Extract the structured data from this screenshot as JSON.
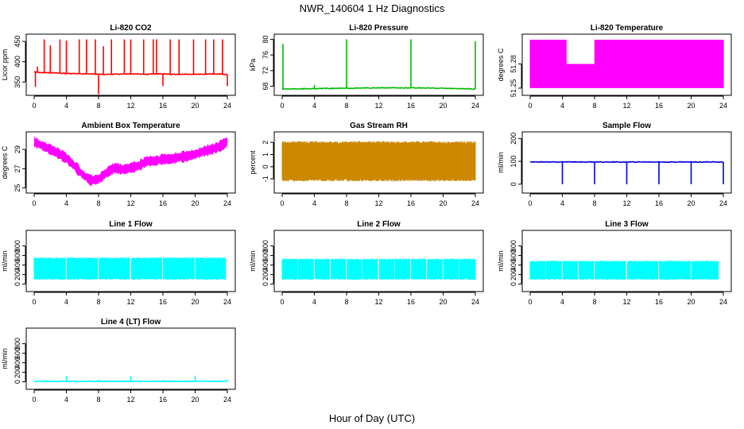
{
  "figure": {
    "title": "NWR_140604  1 Hz Diagnostics",
    "xlabel": "Hour of Day (UTC)"
  },
  "chart_data": [
    {
      "id": "p1",
      "type": "line",
      "title": "Li-820 CO2",
      "ylabel": "Licor ppm",
      "color": "#ff0000",
      "xlim": [
        0,
        24
      ],
      "xticks": [
        0,
        4,
        8,
        12,
        16,
        20,
        24
      ],
      "ylim": [
        325,
        460
      ],
      "yticks": [
        350,
        400,
        450
      ],
      "x": [
        0,
        1,
        2,
        3,
        4,
        5,
        6,
        7,
        8,
        9,
        10,
        11,
        12,
        13,
        14,
        15,
        16,
        17,
        18,
        19,
        20,
        21,
        22,
        23,
        24
      ],
      "values": [
        375,
        373,
        373,
        372,
        371,
        371,
        370,
        370,
        369,
        369,
        369,
        370,
        370,
        370,
        369,
        370,
        370,
        369,
        369,
        369,
        369,
        369,
        370,
        370,
        368
      ],
      "spikes": [
        [
          0.15,
          338
        ],
        [
          0.4,
          388
        ],
        [
          1.25,
          455
        ],
        [
          2.0,
          440
        ],
        [
          3.2,
          455
        ],
        [
          4.0,
          452
        ],
        [
          5.6,
          455
        ],
        [
          6.5,
          455
        ],
        [
          7.6,
          455
        ],
        [
          8.0,
          320
        ],
        [
          8.6,
          438
        ],
        [
          9.6,
          455
        ],
        [
          11.2,
          455
        ],
        [
          12.0,
          455
        ],
        [
          13.6,
          455
        ],
        [
          14.8,
          455
        ],
        [
          15.2,
          455
        ],
        [
          16.0,
          340
        ],
        [
          16.9,
          455
        ],
        [
          18.0,
          455
        ],
        [
          19.8,
          455
        ],
        [
          21.3,
          455
        ],
        [
          22.3,
          455
        ],
        [
          23.4,
          455
        ],
        [
          24.0,
          340
        ]
      ]
    },
    {
      "id": "p2",
      "type": "line",
      "title": "Li-820 Pressure",
      "ylabel": "kPa",
      "color": "#00bb00",
      "xlim": [
        0,
        24
      ],
      "xticks": [
        0,
        4,
        8,
        12,
        16,
        20,
        24
      ],
      "ylim": [
        66.5,
        80.5
      ],
      "yticks": [
        68,
        72,
        76,
        80
      ],
      "x": [
        0,
        4,
        8,
        12,
        16,
        20,
        24
      ],
      "values": [
        67.3,
        67.4,
        67.5,
        67.6,
        67.6,
        67.5,
        67.3
      ],
      "spikes": [
        [
          0.1,
          78.8
        ],
        [
          4.0,
          68.3
        ],
        [
          8.0,
          80
        ],
        [
          16.0,
          80
        ],
        [
          24.0,
          79.5
        ]
      ]
    },
    {
      "id": "p3",
      "type": "band",
      "title": "Li-820 Temperature",
      "ylabel": "degrees C",
      "color": "#ff00ff",
      "xlim": [
        0,
        24
      ],
      "xticks": [
        0,
        4,
        8,
        12,
        16,
        20,
        24
      ],
      "ylim": [
        51.245,
        51.313
      ],
      "yticks": [
        51.25,
        51.28
      ],
      "band": [
        51.25,
        51.31
      ],
      "gap_top": 51.28,
      "gaps": [
        [
          4.5,
          8.0
        ]
      ]
    },
    {
      "id": "p4",
      "type": "band",
      "title": "Ambient Box Temperature",
      "ylabel": "degrees C",
      "color": "#ff00ff",
      "xlim": [
        0,
        24
      ],
      "xticks": [
        0,
        4,
        8,
        12,
        16,
        20,
        24
      ],
      "ylim": [
        24.8,
        30.5
      ],
      "yticks": [
        25,
        27,
        29
      ],
      "x": [
        0,
        1,
        2,
        3,
        4,
        5,
        6,
        7,
        8,
        9,
        10,
        11,
        12,
        13,
        14,
        15,
        16,
        17,
        18,
        19,
        20,
        21,
        22,
        23,
        24
      ],
      "values": [
        29.8,
        29.4,
        29.0,
        28.6,
        28.1,
        27.3,
        26.4,
        25.8,
        25.9,
        26.6,
        27.1,
        26.9,
        27.1,
        27.3,
        27.8,
        27.8,
        28.0,
        28.0,
        28.2,
        28.3,
        28.5,
        28.8,
        29.0,
        29.3,
        29.8
      ],
      "halfwidth": 0.55
    },
    {
      "id": "p5",
      "type": "band",
      "title": "Gas Stream RH",
      "ylabel": "percent",
      "color": "#cc8800",
      "xlim": [
        0,
        24
      ],
      "xticks": [
        0,
        4,
        8,
        12,
        16,
        20,
        24
      ],
      "ylim": [
        -1.9,
        2.6
      ],
      "yticks": [
        -1,
        0,
        1,
        2
      ],
      "band": [
        -1.2,
        2.1
      ]
    },
    {
      "id": "p6",
      "type": "line",
      "title": "Sample Flow",
      "ylabel": "ml/min",
      "color": "#0000dd",
      "xlim": [
        0,
        24
      ],
      "xticks": [
        0,
        4,
        8,
        12,
        16,
        20,
        24
      ],
      "ylim": [
        -25,
        215
      ],
      "yticks": [
        0,
        100,
        200
      ],
      "x": [
        0,
        24
      ],
      "values": [
        97,
        97
      ],
      "spikes": [
        [
          4,
          0
        ],
        [
          8,
          0
        ],
        [
          12,
          0
        ],
        [
          16,
          0
        ],
        [
          20,
          0
        ],
        [
          24,
          0
        ]
      ]
    },
    {
      "id": "p7",
      "type": "band",
      "title": "Line 1 Flow",
      "ylabel": "ml/min",
      "color": "#00ffff",
      "xlim": [
        0,
        24
      ],
      "xticks": [
        0,
        4,
        8,
        12,
        16,
        20,
        24
      ],
      "ylim": [
        -90,
        1060
      ],
      "yticks": [
        0,
        200,
        400,
        600,
        800
      ],
      "band": [
        90,
        560
      ],
      "gaps": [
        [
          3.9,
          4.05
        ],
        [
          7.9,
          8.05
        ],
        [
          11.9,
          12.05
        ],
        [
          15.9,
          16.05
        ],
        [
          19.9,
          20.05
        ],
        [
          23.8,
          24.0
        ]
      ]
    },
    {
      "id": "p8",
      "type": "band",
      "title": "Line 2 Flow",
      "ylabel": "ml/min",
      "color": "#00ffff",
      "xlim": [
        0,
        24
      ],
      "xticks": [
        0,
        4,
        8,
        12,
        16,
        20,
        24
      ],
      "ylim": [
        -90,
        1060
      ],
      "yticks": [
        0,
        200,
        400,
        600,
        800
      ],
      "band": [
        90,
        535
      ],
      "gaps": [
        [
          1.9,
          2.0
        ],
        [
          3.9,
          4.05
        ],
        [
          5.9,
          6.0
        ],
        [
          7.9,
          8.05
        ],
        [
          9.9,
          10.0
        ],
        [
          11.9,
          12.05
        ],
        [
          13.9,
          14.0
        ],
        [
          15.9,
          16.05
        ],
        [
          17.9,
          18.0
        ],
        [
          19.9,
          20.05
        ],
        [
          21.9,
          22.0
        ]
      ]
    },
    {
      "id": "p9",
      "type": "band",
      "title": "Line 3 Flow",
      "ylabel": "ml/min",
      "color": "#00ffff",
      "xlim": [
        0,
        24
      ],
      "xticks": [
        0,
        4,
        8,
        12,
        16,
        20,
        24
      ],
      "ylim": [
        -90,
        1060
      ],
      "yticks": [
        0,
        200,
        400,
        600,
        800
      ],
      "band": [
        90,
        490
      ],
      "gaps": [
        [
          1.9,
          2.0
        ],
        [
          3.9,
          4.05
        ],
        [
          5.9,
          6.0
        ],
        [
          7.9,
          8.05
        ],
        [
          11.9,
          12.05
        ],
        [
          15.9,
          16.05
        ],
        [
          19.9,
          20.05
        ],
        [
          23.4,
          24.0
        ]
      ]
    },
    {
      "id": "p10",
      "type": "line",
      "title": "Line 4 (LT) Flow",
      "ylabel": "ml/min",
      "color": "#00ffff",
      "xlim": [
        0,
        24
      ],
      "xticks": [
        0,
        4,
        8,
        12,
        16,
        20,
        24
      ],
      "ylim": [
        -90,
        1060
      ],
      "yticks": [
        0,
        200,
        400,
        600,
        800
      ],
      "x": [
        0,
        24
      ],
      "values": [
        10,
        10
      ],
      "spikes": [
        [
          4,
          120
        ],
        [
          8,
          40
        ],
        [
          12,
          120
        ],
        [
          16,
          40
        ],
        [
          20,
          130
        ],
        [
          24,
          40
        ]
      ]
    }
  ]
}
